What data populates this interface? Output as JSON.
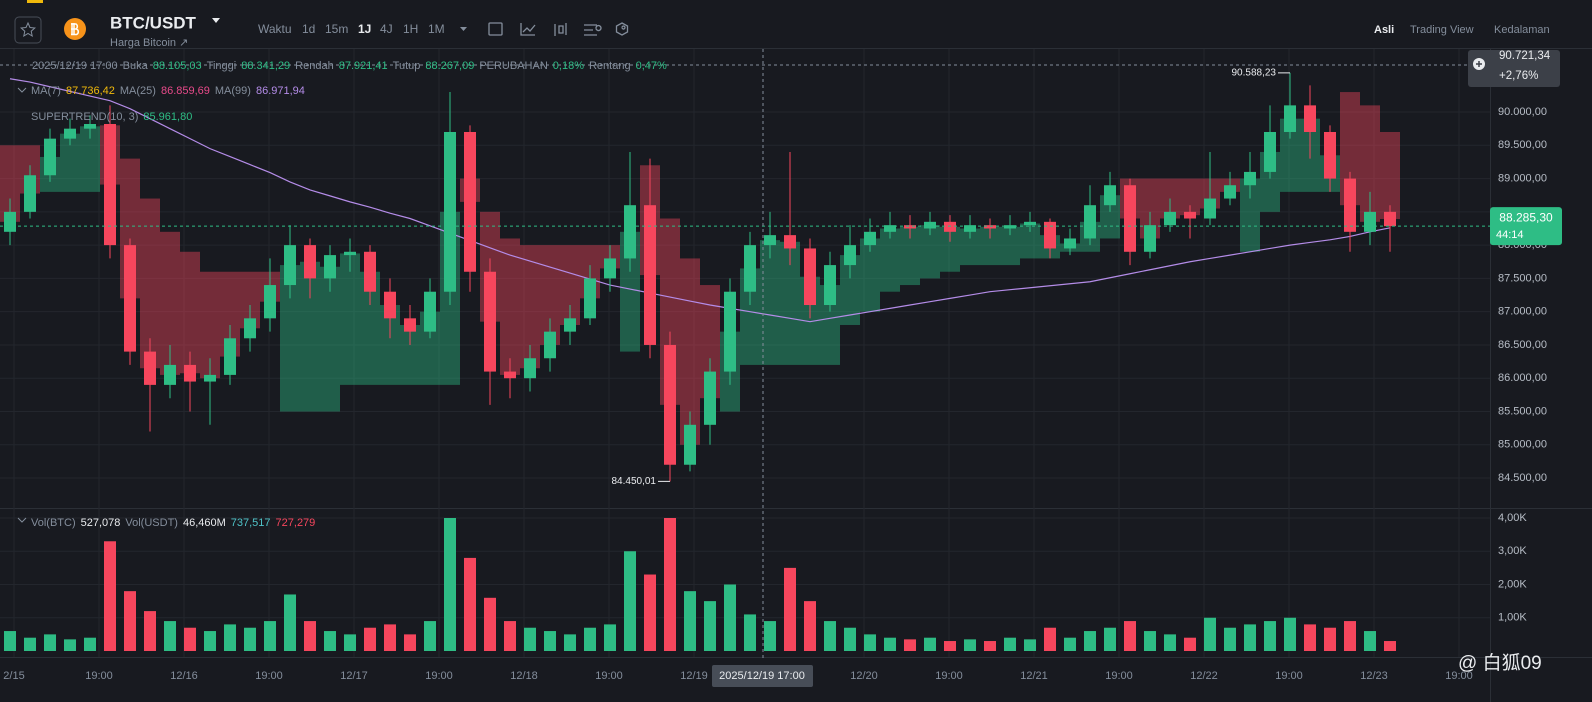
{
  "header": {
    "symbol": "BTC/USDT",
    "subtitle": "Harga Bitcoin ↗",
    "intervals": [
      "Waktu",
      "1d",
      "15m",
      "1J",
      "4J",
      "1H",
      "1M"
    ],
    "views": [
      "Asli",
      "Trading View",
      "Kedalaman"
    ],
    "watermark": "@ 白狐09"
  },
  "chart_data": {
    "type": "candlestick",
    "legend_time": "2025/12/19 17:00",
    "ohlc_legend": [
      [
        "Buka",
        "88.105,03"
      ],
      [
        "Tinggi",
        "88.341,29"
      ],
      [
        "Rendah",
        "87.921,41"
      ],
      [
        "Tutup",
        "88.267,09"
      ],
      [
        "PERUBAHAN",
        "0,18%"
      ],
      [
        "Rentang",
        "0,47%"
      ]
    ],
    "ma_legend": [
      [
        "MA(7)",
        "87.736,42",
        "#f0b90b"
      ],
      [
        "MA(25)",
        "86.859,69",
        "#e84a8a"
      ],
      [
        "MA(99)",
        "86.971,94",
        "#b48ce8"
      ]
    ],
    "supertrend_legend": [
      "SUPERTREND(10, 3)",
      "85.961,80"
    ],
    "vol_legend": [
      [
        "Vol(BTC)",
        "527,078",
        "#eaecef"
      ],
      [
        "Vol(USDT)",
        "46,460M",
        "#eaecef"
      ],
      [
        "",
        "737,517",
        "#4fc3c8"
      ],
      [
        "",
        "727,279",
        "#f6465d"
      ]
    ],
    "up_color": "#2ebd85",
    "down_color": "#f6465d",
    "ma99_color": "#b48ce8",
    "ylim": [
      84065,
      90932
    ],
    "yticks": [
      {
        "value": 90000,
        "label": "90.000,00"
      },
      {
        "value": 89500,
        "label": "89.500,00"
      },
      {
        "value": 89000,
        "label": "89.000,00"
      },
      {
        "value": 88500,
        "label": "88.500,00"
      },
      {
        "value": 88000,
        "label": "88.000,00"
      },
      {
        "value": 87500,
        "label": "87.500,00"
      },
      {
        "value": 87000,
        "label": "87.000,00"
      },
      {
        "value": 86500,
        "label": "86.500,00"
      },
      {
        "value": 86000,
        "label": "86.000,00"
      },
      {
        "value": 85500,
        "label": "85.500,00"
      },
      {
        "value": 85000,
        "label": "85.000,00"
      },
      {
        "value": 84500,
        "label": "84.500,00"
      }
    ],
    "vol_ylim": [
      0,
      4000
    ],
    "vol_yticks": [
      {
        "value": 4000,
        "label": "4,00K"
      },
      {
        "value": 3000,
        "label": "3,00K"
      },
      {
        "value": 2000,
        "label": "2,00K"
      },
      {
        "value": 1000,
        "label": "1,00K"
      }
    ],
    "top_price": {
      "label": "90.721,34",
      "change": "+2,76%"
    },
    "last_price": {
      "value": 88285.3,
      "label": "88.285,30",
      "countdown": "44:14"
    },
    "high_label": "90.588,23",
    "low_label": "84.450,01",
    "time_labels": [
      "2/15",
      "19:00",
      "12/16",
      "19:00",
      "12/17",
      "19:00",
      "12/18",
      "19:00",
      "12/19",
      "12/20",
      "19:00",
      "12/21",
      "19:00",
      "12/22",
      "19:00",
      "12/23",
      "19:00"
    ],
    "crosshair_label": "2025/12/19 17:00",
    "ohlc": [
      [
        88200,
        88700,
        88000,
        88500
      ],
      [
        88500,
        89200,
        88400,
        89050
      ],
      [
        89050,
        89750,
        88950,
        89600
      ],
      [
        89600,
        89900,
        89500,
        89750
      ],
      [
        89750,
        89950,
        89600,
        89820
      ],
      [
        89820,
        90100,
        87800,
        88000
      ],
      [
        88000,
        88100,
        86200,
        86400
      ],
      [
        86400,
        86600,
        85200,
        85900
      ],
      [
        85900,
        86500,
        85700,
        86200
      ],
      [
        86200,
        86400,
        85500,
        85950
      ],
      [
        85950,
        86300,
        85300,
        86050
      ],
      [
        86050,
        86800,
        85900,
        86600
      ],
      [
        86600,
        87100,
        86400,
        86900
      ],
      [
        86900,
        87800,
        86700,
        87400
      ],
      [
        87400,
        88300,
        87200,
        88000
      ],
      [
        88000,
        88100,
        87200,
        87500
      ],
      [
        87500,
        88000,
        87300,
        87850
      ],
      [
        87850,
        88100,
        87600,
        87900
      ],
      [
        87900,
        88000,
        87100,
        87300
      ],
      [
        87300,
        87500,
        86600,
        86900
      ],
      [
        86900,
        87100,
        86500,
        86700
      ],
      [
        86700,
        87500,
        86600,
        87300
      ],
      [
        87300,
        90300,
        87100,
        89700
      ],
      [
        89700,
        89800,
        87300,
        87600
      ],
      [
        87600,
        87800,
        85600,
        86100
      ],
      [
        86100,
        86300,
        85700,
        86000
      ],
      [
        86000,
        86500,
        85800,
        86300
      ],
      [
        86300,
        86900,
        86100,
        86700
      ],
      [
        86700,
        87100,
        86500,
        86900
      ],
      [
        86900,
        87700,
        86800,
        87500
      ],
      [
        87500,
        88000,
        87300,
        87800
      ],
      [
        87800,
        89400,
        87600,
        88600
      ],
      [
        88600,
        89300,
        86300,
        86500
      ],
      [
        86500,
        86700,
        84450.01,
        84700
      ],
      [
        84700,
        85500,
        84600,
        85300
      ],
      [
        85300,
        86300,
        85000,
        86100
      ],
      [
        86100,
        87500,
        85900,
        87300
      ],
      [
        87300,
        88200,
        87100,
        88000
      ],
      [
        88000,
        88500,
        87800,
        88150
      ],
      [
        88150,
        89400,
        87700,
        87950
      ],
      [
        87950,
        88100,
        86900,
        87100
      ],
      [
        87100,
        87900,
        87000,
        87700
      ],
      [
        87700,
        88300,
        87500,
        88000
      ],
      [
        88000,
        88400,
        87900,
        88200
      ],
      [
        88200,
        88500,
        88100,
        88300
      ],
      [
        88300,
        88450,
        88100,
        88250
      ],
      [
        88250,
        88500,
        88150,
        88350
      ],
      [
        88350,
        88450,
        88050,
        88200
      ],
      [
        88200,
        88450,
        88100,
        88300
      ],
      [
        88300,
        88400,
        88100,
        88250
      ],
      [
        88250,
        88450,
        88150,
        88300
      ],
      [
        88300,
        88500,
        88200,
        88350
      ],
      [
        88350,
        88400,
        87800,
        87950
      ],
      [
        87950,
        88250,
        87850,
        88100
      ],
      [
        88100,
        88900,
        88000,
        88600
      ],
      [
        88600,
        89100,
        88500,
        88900
      ],
      [
        88900,
        89000,
        87700,
        87900
      ],
      [
        87900,
        88500,
        87800,
        88300
      ],
      [
        88300,
        88700,
        88200,
        88500
      ],
      [
        88500,
        88600,
        88100,
        88400
      ],
      [
        88400,
        89400,
        88300,
        88700
      ],
      [
        88700,
        89100,
        88600,
        88900
      ],
      [
        88900,
        89400,
        88700,
        89100
      ],
      [
        89100,
        90100,
        89000,
        89700
      ],
      [
        89700,
        90588.23,
        89600,
        90100
      ],
      [
        90100,
        90400,
        89300,
        89700
      ],
      [
        89700,
        89800,
        88800,
        89000
      ],
      [
        89000,
        89100,
        87900,
        88200
      ],
      [
        88200,
        88800,
        88000,
        88500
      ],
      [
        88500,
        88600,
        87900,
        88285.3
      ]
    ],
    "supertrend": [
      89500,
      89500,
      88800,
      88800,
      88800,
      89800,
      89300,
      88700,
      88200,
      87900,
      87600,
      87600,
      87600,
      87600,
      85500,
      85500,
      85500,
      85900,
      85900,
      85900,
      85900,
      85900,
      85900,
      89000,
      88500,
      88100,
      88000,
      88000,
      88000,
      88000,
      88000,
      86400,
      89200,
      88400,
      87800,
      87400,
      85500,
      86200,
      86200,
      86200,
      86200,
      86200,
      86800,
      87000,
      87300,
      87400,
      87500,
      87600,
      87700,
      87700,
      87700,
      87800,
      87800,
      87900,
      87900,
      88100,
      89000,
      89000,
      89000,
      89000,
      89000,
      89000,
      87900,
      88500,
      88800,
      88800,
      88800,
      90300,
      90100,
      89700
    ],
    "ma99": [
      90500,
      90450,
      90380,
      90310,
      90240,
      90170,
      90050,
      89900,
      89750,
      89600,
      89450,
      89330,
      89210,
      89090,
      88950,
      88830,
      88740,
      88650,
      88570,
      88480,
      88400,
      88290,
      88180,
      88070,
      87960,
      87850,
      87760,
      87670,
      87580,
      87490,
      87400,
      87340,
      87280,
      87220,
      87160,
      87100,
      87050,
      87000,
      86950,
      86900,
      86850,
      86900,
      86950,
      87000,
      87050,
      87100,
      87150,
      87200,
      87250,
      87300,
      87330,
      87360,
      87390,
      87420,
      87450,
      87510,
      87570,
      87630,
      87690,
      87750,
      87800,
      87850,
      87900,
      87950,
      88000,
      88040,
      88080,
      88130,
      88200,
      88260
    ],
    "volume": [
      600,
      400,
      500,
      350,
      400,
      3300,
      1800,
      1200,
      900,
      700,
      600,
      800,
      700,
      900,
      1700,
      900,
      600,
      500,
      700,
      800,
      500,
      900,
      4000,
      2800,
      1600,
      900,
      700,
      600,
      500,
      700,
      800,
      3000,
      2300,
      4000,
      1800,
      1500,
      2000,
      1100,
      900,
      2500,
      1500,
      900,
      700,
      500,
      400,
      350,
      400,
      300,
      350,
      300,
      400,
      350,
      700,
      400,
      600,
      700,
      900,
      600,
      500,
      400,
      1000,
      700,
      800,
      900,
      1000,
      800,
      700,
      900,
      600,
      300
    ]
  }
}
